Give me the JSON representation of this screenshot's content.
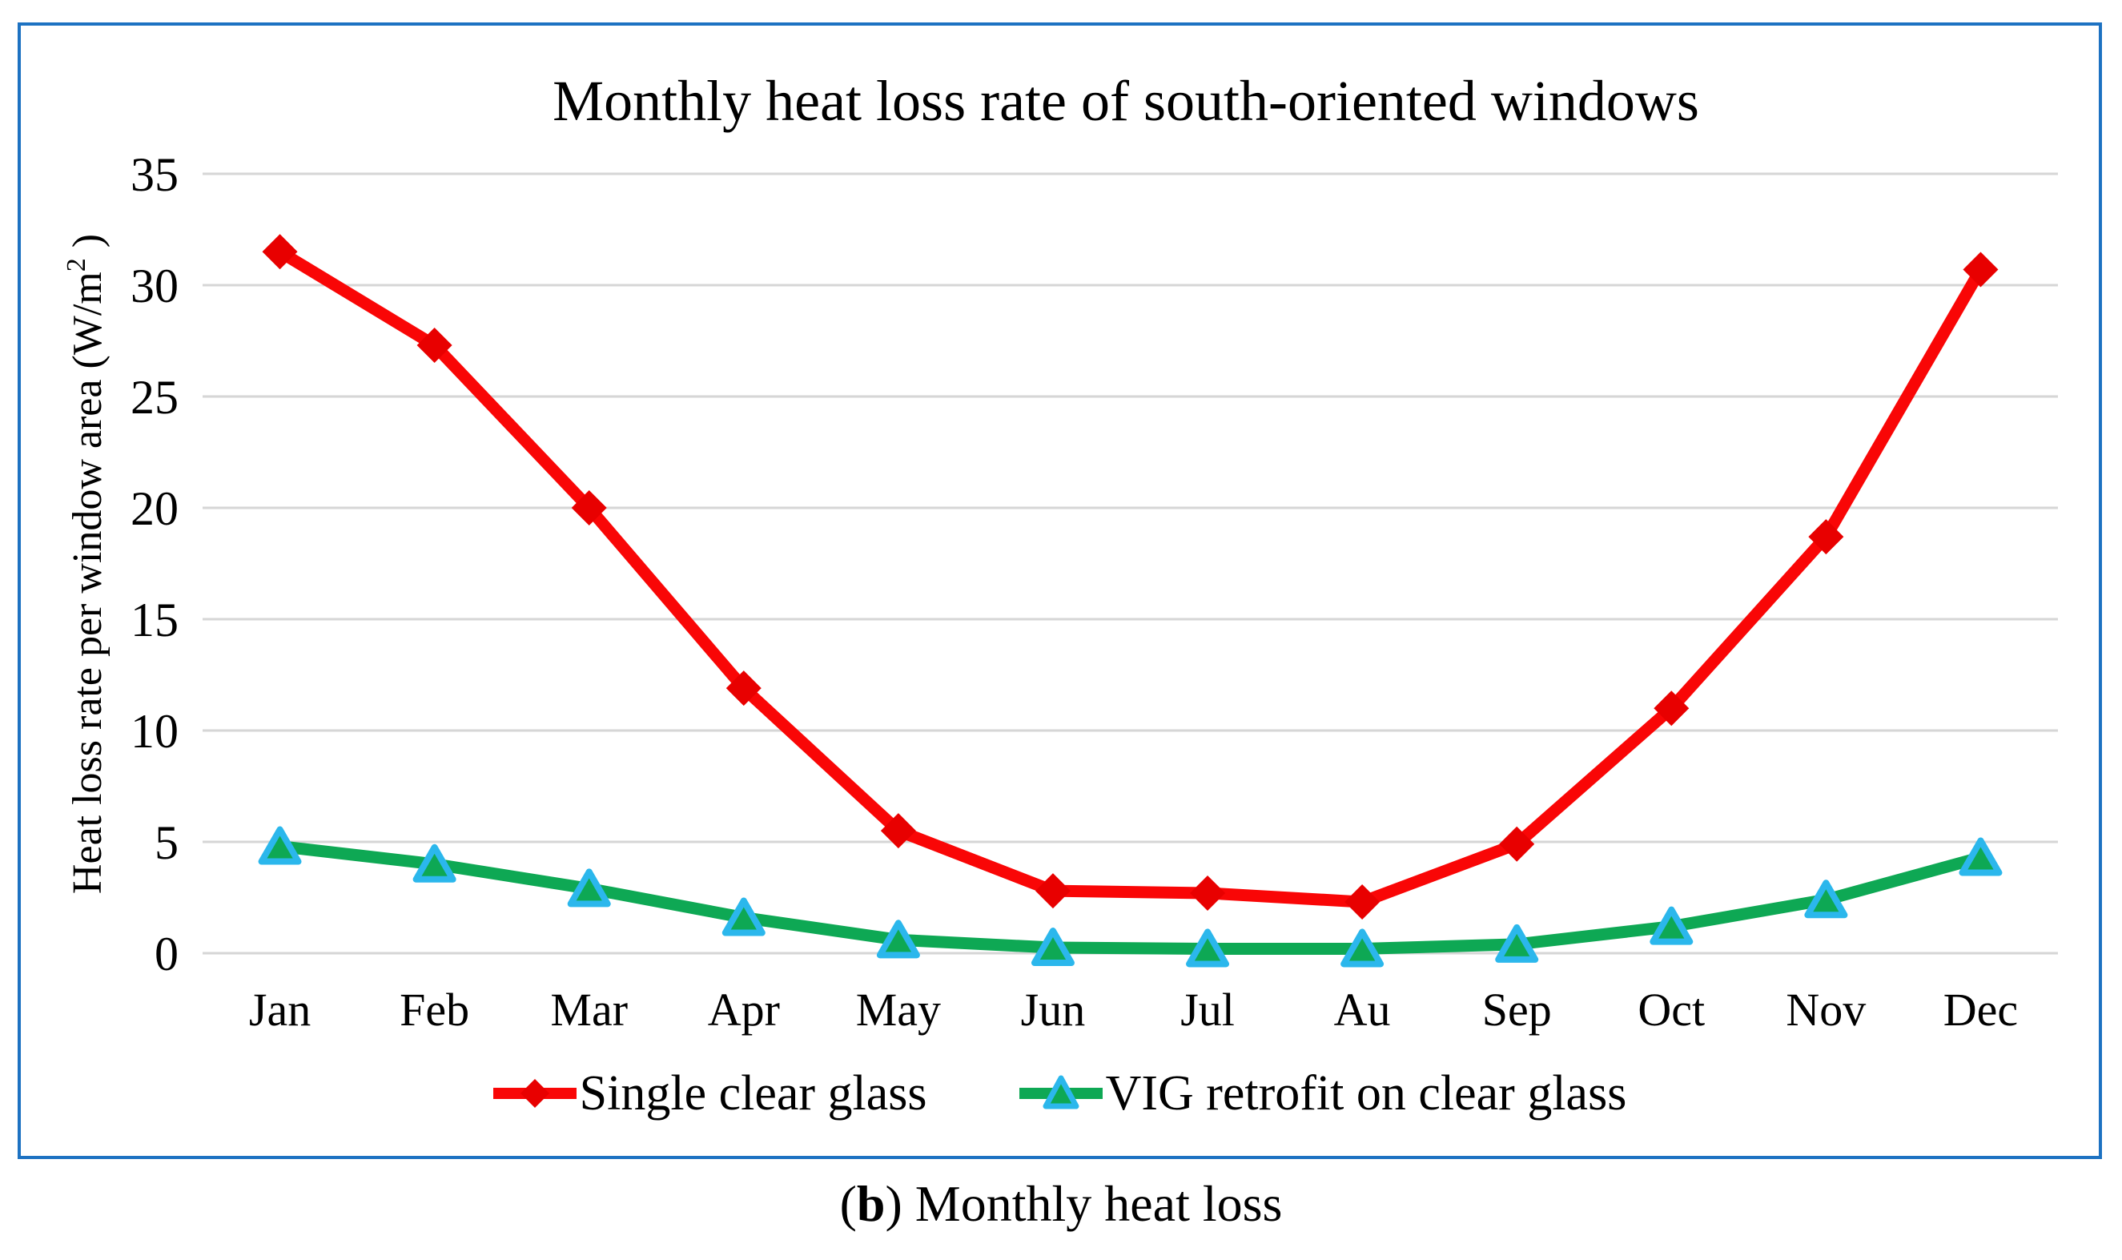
{
  "figure": {
    "border_color": "#1D72C2",
    "background": "#FFFFFF",
    "caption": {
      "open": "(",
      "bold": "b",
      "rest": ") Monthly heat loss"
    }
  },
  "chart_data": {
    "type": "line",
    "title": "Monthly heat loss rate of south-oriented windows",
    "ylabel": "Heat loss rate per window area (W/m2)",
    "ylabel_parts": {
      "pre": "Heat loss rate per window area (W/m",
      "sup": "2",
      "post": " )"
    },
    "xlabel": "",
    "categories": [
      "Jan",
      "Feb",
      "Mar",
      "Apr",
      "May",
      "Jun",
      "Jul",
      "Au",
      "Sep",
      "Oct",
      "Nov",
      "Dec"
    ],
    "series": [
      {
        "name": "Single clear glass",
        "color": "#F90606",
        "marker": "diamond",
        "marker_fill": "#E80000",
        "values": [
          31.5,
          27.3,
          20.0,
          11.9,
          5.5,
          2.8,
          2.7,
          2.3,
          4.9,
          11.0,
          18.7,
          30.7
        ]
      },
      {
        "name": "VIG retrofit on clear glass",
        "color": "#0EA854",
        "marker": "triangle",
        "marker_fill": "#0EA854",
        "marker_stroke": "#2BB7EC",
        "values": [
          4.8,
          4.0,
          2.9,
          1.6,
          0.6,
          0.25,
          0.2,
          0.2,
          0.4,
          1.2,
          2.4,
          4.3
        ]
      }
    ],
    "ylim": [
      0,
      35
    ],
    "yticks": [
      0,
      5,
      10,
      15,
      20,
      25,
      30,
      35
    ],
    "grid": true,
    "gridline_color": "#D6D6D6",
    "legend_position": "bottom"
  }
}
